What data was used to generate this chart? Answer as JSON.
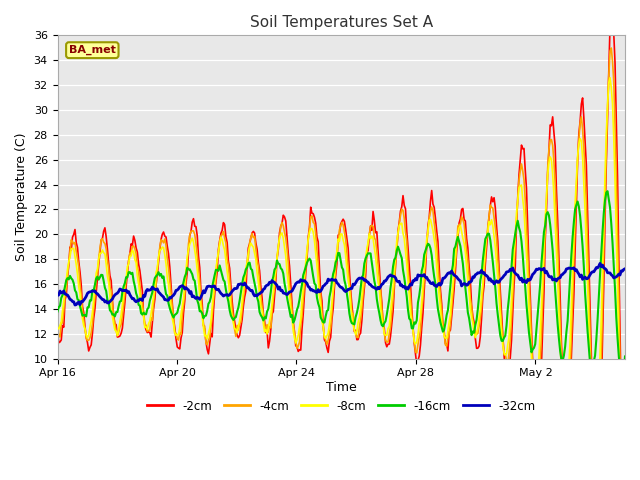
{
  "title": "Soil Temperatures Set A",
  "xlabel": "Time",
  "ylabel": "Soil Temperature (C)",
  "ylim": [
    10,
    36
  ],
  "yticks": [
    10,
    12,
    14,
    16,
    18,
    20,
    22,
    24,
    26,
    28,
    30,
    32,
    34,
    36
  ],
  "annotation_text": "BA_met",
  "annotation_bbox_facecolor": "#FFFF99",
  "annotation_bbox_edgecolor": "#999900",
  "annotation_text_color": "#880000",
  "background_color": "#E8E8E8",
  "line_colors": {
    "-2cm": "#FF0000",
    "-4cm": "#FFA500",
    "-8cm": "#FFFF00",
    "-16cm": "#00CC00",
    "-32cm": "#0000BB"
  },
  "line_widths": {
    "-2cm": 1.2,
    "-4cm": 1.2,
    "-8cm": 1.2,
    "-16cm": 1.5,
    "-32cm": 2.0
  },
  "x_ticks_labels": [
    "Apr 16",
    "Apr 20",
    "Apr 24",
    "Apr 28",
    "May 2"
  ],
  "x_ticks_positions": [
    0,
    4,
    8,
    12,
    16
  ]
}
